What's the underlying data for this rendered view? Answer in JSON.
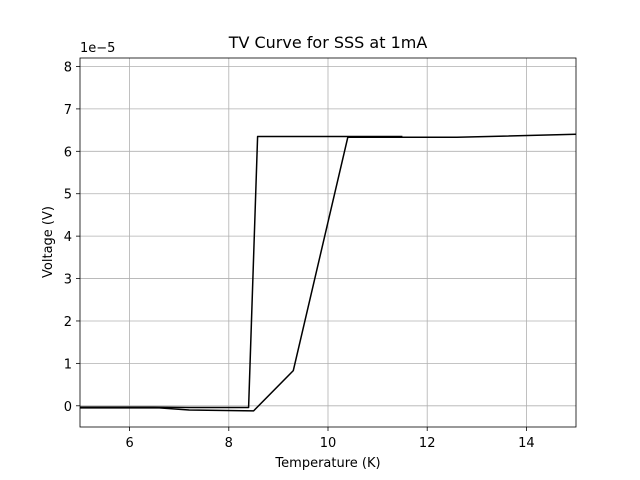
{
  "chart_data": {
    "type": "line",
    "title": "TV Curve for SSS at 1mA",
    "xlabel": "Temperature (K)",
    "ylabel": "Voltage (V)",
    "y_offset_text": "1e−5",
    "xlim": [
      5,
      15
    ],
    "ylim": [
      -0.5,
      8.2
    ],
    "xticks": [
      6,
      8,
      10,
      12,
      14
    ],
    "yticks": [
      0,
      1,
      2,
      3,
      4,
      5,
      6,
      7,
      8
    ],
    "grid": true,
    "series": [
      {
        "x": [
          5.0,
          6.5,
          7.2,
          8.4,
          8.58,
          11.5
        ],
        "y": [
          -0.03,
          -0.03,
          -0.04,
          -0.04,
          6.35,
          6.35
        ]
      },
      {
        "x": [
          5.0,
          6.6,
          7.2,
          8.5,
          9.3,
          10.4,
          12.6,
          15.0
        ],
        "y": [
          -0.05,
          -0.05,
          -0.1,
          -0.12,
          0.83,
          6.33,
          6.33,
          6.4
        ]
      }
    ]
  }
}
